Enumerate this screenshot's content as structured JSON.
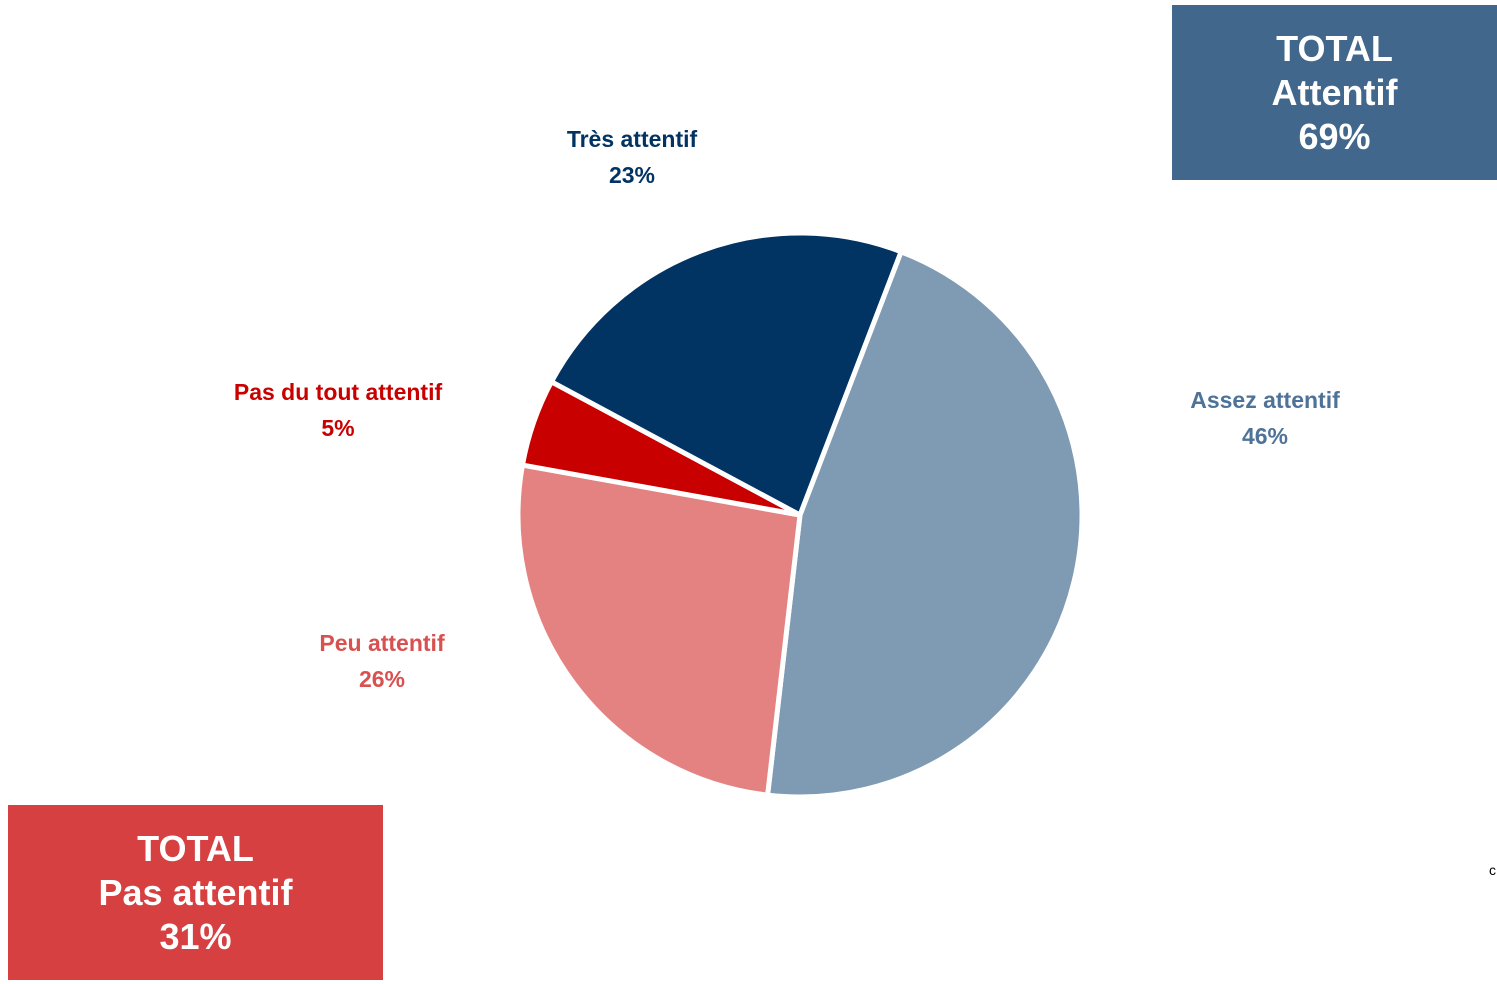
{
  "chart_data": {
    "type": "pie",
    "slices": [
      {
        "label": "Assez attentif",
        "value": 46,
        "value_label": "46%",
        "color": "#7f9ab3",
        "label_color": "#4f7398"
      },
      {
        "label": "Peu attentif",
        "value": 26,
        "value_label": "26%",
        "color": "#e48282",
        "label_color": "#d95050"
      },
      {
        "label": "Pas du tout attentif",
        "value": 5,
        "value_label": "5%",
        "color": "#c90000",
        "label_color": "#c90000"
      },
      {
        "label": "Très attentif",
        "value": 23,
        "value_label": "23%",
        "color": "#023463",
        "label_color": "#023463"
      }
    ],
    "start_angle_deg": 21,
    "direction": "clockwise"
  },
  "totals": {
    "attentif": {
      "title": "TOTAL",
      "label": "Attentif",
      "value": "69%",
      "color": "#41678d"
    },
    "pas_attentif": {
      "title": "TOTAL",
      "label": "Pas attentif",
      "value": "31%",
      "color": "#d64040"
    }
  },
  "stray_text": "c"
}
